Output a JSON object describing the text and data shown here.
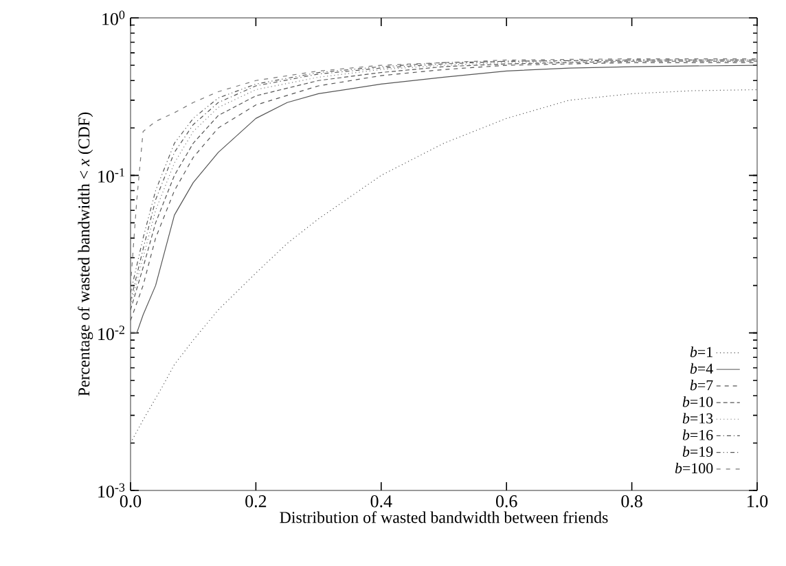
{
  "chart_data": {
    "type": "line",
    "xlabel": "Distribution of wasted bandwidth between friends",
    "ylabel": "Percentage of wasted bandwidth < *x* (CDF)",
    "log": "y",
    "grid": false,
    "legend": "bottom right",
    "xlim": [
      0,
      1
    ],
    "ylim": [
      0.001,
      1
    ],
    "xticks": [
      {
        "value": 0,
        "label": "0.0"
      },
      0.2,
      0.4,
      0.6,
      0.8,
      {
        "value": 1,
        "label": "1.0"
      }
    ],
    "yticks": [
      {
        "value": 0.001,
        "label": "10$^{-3}$"
      },
      {
        "value": 0.01,
        "label": "10$^{-2}$"
      },
      {
        "value": 0.1,
        "label": "10$^{-1}$"
      },
      {
        "value": 1,
        "label": "10$^{0}$"
      }
    ],
    "series": [
      {
        "name": "*b*=1",
        "color": "#555555",
        "line_style": "dotted",
        "x": [
          0,
          0.02,
          0.05,
          0.07,
          0.1,
          0.14,
          0.2,
          0.25,
          0.3,
          0.4,
          0.5,
          0.6,
          0.7,
          0.8,
          0.9,
          1.0
        ],
        "values": [
          0.002,
          0.0028,
          0.0045,
          0.0063,
          0.009,
          0.014,
          0.024,
          0.037,
          0.053,
          0.1,
          0.16,
          0.23,
          0.3,
          0.33,
          0.345,
          0.35
        ]
      },
      {
        "name": "*b*=4",
        "color": "#555555",
        "line_style": "solid",
        "x": [
          0,
          0.01,
          0.02,
          0.04,
          0.07,
          0.1,
          0.14,
          0.2,
          0.25,
          0.3,
          0.4,
          0.5,
          0.6,
          0.7,
          0.8,
          1.0
        ],
        "values": [
          0.01,
          0.01,
          0.013,
          0.02,
          0.056,
          0.09,
          0.14,
          0.23,
          0.29,
          0.33,
          0.38,
          0.42,
          0.46,
          0.48,
          0.49,
          0.5
        ]
      },
      {
        "name": "*b*=7",
        "color": "#555555",
        "line_style": "dashed",
        "x": [
          0,
          0.02,
          0.04,
          0.07,
          0.1,
          0.14,
          0.2,
          0.3,
          0.4,
          0.5,
          0.6,
          0.8,
          1.0
        ],
        "values": [
          0.012,
          0.02,
          0.04,
          0.08,
          0.13,
          0.2,
          0.28,
          0.37,
          0.43,
          0.47,
          0.5,
          0.52,
          0.52
        ]
      },
      {
        "name": "*b*=10",
        "color": "#555555",
        "line_style": "densely dashed",
        "x": [
          0,
          0.02,
          0.04,
          0.07,
          0.1,
          0.14,
          0.2,
          0.3,
          0.4,
          0.5,
          0.6,
          0.8,
          1.0
        ],
        "values": [
          0.014,
          0.026,
          0.05,
          0.1,
          0.16,
          0.24,
          0.32,
          0.4,
          0.45,
          0.49,
          0.51,
          0.53,
          0.53
        ]
      },
      {
        "name": "*b*=13",
        "color": "#777777",
        "line_style": "dotted",
        "x": [
          0,
          0.02,
          0.04,
          0.07,
          0.1,
          0.14,
          0.2,
          0.3,
          0.4,
          0.5,
          0.6,
          0.8,
          1.0
        ],
        "values": [
          0.015,
          0.03,
          0.06,
          0.12,
          0.19,
          0.27,
          0.35,
          0.42,
          0.47,
          0.5,
          0.52,
          0.53,
          0.53
        ]
      },
      {
        "name": "*b*=16",
        "color": "#555555",
        "line_style": "dashdotted",
        "x": [
          0,
          0.02,
          0.04,
          0.07,
          0.1,
          0.14,
          0.2,
          0.3,
          0.4,
          0.5,
          0.6,
          0.8,
          1.0
        ],
        "values": [
          0.016,
          0.034,
          0.07,
          0.14,
          0.21,
          0.29,
          0.37,
          0.44,
          0.48,
          0.51,
          0.53,
          0.54,
          0.54
        ]
      },
      {
        "name": "*b*=19",
        "color": "#555555",
        "line_style": "dashdotdotted",
        "x": [
          0,
          0.02,
          0.04,
          0.07,
          0.1,
          0.14,
          0.2,
          0.3,
          0.4,
          0.5,
          0.6,
          0.8,
          1.0
        ],
        "values": [
          0.018,
          0.04,
          0.08,
          0.16,
          0.23,
          0.31,
          0.38,
          0.45,
          0.49,
          0.52,
          0.53,
          0.54,
          0.54
        ]
      },
      {
        "name": "*b*=100",
        "color": "#777777",
        "line_style": "loosely dashed",
        "x": [
          0,
          0.01,
          0.02,
          0.04,
          0.07,
          0.1,
          0.14,
          0.2,
          0.3,
          0.4,
          0.5,
          0.6,
          0.8,
          1.0
        ],
        "values": [
          0.02,
          0.07,
          0.19,
          0.22,
          0.25,
          0.29,
          0.34,
          0.4,
          0.46,
          0.5,
          0.52,
          0.54,
          0.55,
          0.55
        ]
      }
    ]
  }
}
